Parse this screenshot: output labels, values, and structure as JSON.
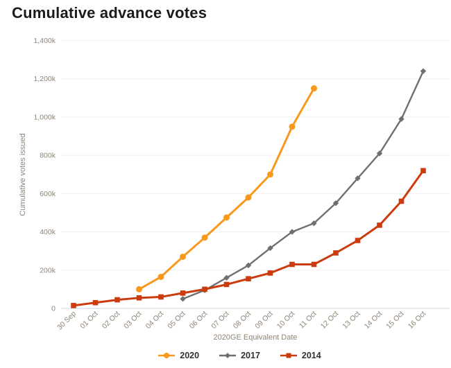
{
  "title": "Cumulative advance votes",
  "chart_data": {
    "type": "line",
    "x": [
      "30 Sep",
      "01 Oct",
      "02 Oct",
      "03 Oct",
      "04 Oct",
      "05 Oct",
      "06 Oct",
      "07 Oct",
      "08 Oct",
      "09 Oct",
      "10 Oct",
      "11 Oct",
      "12 Oct",
      "13 Oct",
      "14 Oct",
      "15 Oct",
      "16 Oct"
    ],
    "xlabel": "2020GE Equivalent Date",
    "ylabel": "Cumulative votes issued",
    "ylim": [
      0,
      1400000
    ],
    "ytick_values": [
      0,
      200000,
      400000,
      600000,
      800000,
      1000000,
      1200000,
      1400000
    ],
    "ytick_labels": [
      "0",
      "200k",
      "400k",
      "600k",
      "800k",
      "1,000k",
      "1,200k",
      "1,400k"
    ],
    "grid": true,
    "legend_position": "bottom",
    "series": [
      {
        "name": "2020",
        "color": "#f8991d",
        "marker": "circle",
        "values": [
          null,
          null,
          null,
          100000,
          165000,
          270000,
          370000,
          475000,
          580000,
          700000,
          950000,
          1150000,
          null,
          null,
          null,
          null,
          null
        ]
      },
      {
        "name": "2017",
        "color": "#6f6f6f",
        "marker": "diamond",
        "values": [
          null,
          null,
          null,
          null,
          null,
          50000,
          95000,
          160000,
          225000,
          315000,
          400000,
          445000,
          550000,
          680000,
          810000,
          990000,
          1240000
        ]
      },
      {
        "name": "2014",
        "color": "#cc3b0e",
        "marker": "square",
        "values": [
          15000,
          30000,
          45000,
          55000,
          60000,
          80000,
          100000,
          125000,
          155000,
          185000,
          230000,
          230000,
          290000,
          355000,
          435000,
          560000,
          720000
        ]
      }
    ],
    "colors": {
      "gridline": "#f0f0f0",
      "axis_line": "#c9d4e2",
      "axis_text": "#8f8476",
      "title_text": "#1b1b1b",
      "legend_text": "#303030"
    }
  }
}
